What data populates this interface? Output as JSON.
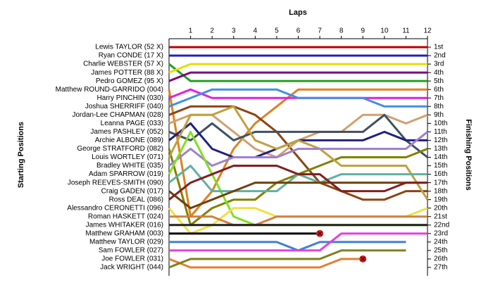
{
  "chart_data": {
    "type": "line",
    "title": "Laps",
    "ylabel": "Starting Positions",
    "y2label": "Finishing Positions",
    "x": [
      0,
      1,
      2,
      3,
      4,
      5,
      6,
      7,
      8,
      9,
      10,
      11,
      12
    ],
    "xlim": [
      0,
      12
    ],
    "xticks": [
      1,
      2,
      3,
      4,
      5,
      6,
      7,
      8,
      9,
      10,
      11,
      12
    ],
    "ylim": [
      27,
      1
    ],
    "y2lim": [
      27,
      1
    ],
    "y2ticks": [
      {
        "value": 1,
        "label": "1st"
      },
      {
        "value": 2,
        "label": "2nd"
      },
      {
        "value": 3,
        "label": "3rd"
      },
      {
        "value": 4,
        "label": "4th"
      },
      {
        "value": 5,
        "label": "5th"
      },
      {
        "value": 6,
        "label": "6th"
      },
      {
        "value": 7,
        "label": "7th"
      },
      {
        "value": 8,
        "label": "8th"
      },
      {
        "value": 9,
        "label": "9th"
      },
      {
        "value": 10,
        "label": "10th"
      },
      {
        "value": 11,
        "label": "11th"
      },
      {
        "value": 12,
        "label": "12th"
      },
      {
        "value": 13,
        "label": "13th"
      },
      {
        "value": 14,
        "label": "14th"
      },
      {
        "value": 15,
        "label": "15th"
      },
      {
        "value": 16,
        "label": "16th"
      },
      {
        "value": 17,
        "label": "17th"
      },
      {
        "value": 18,
        "label": "18th"
      },
      {
        "value": 19,
        "label": "19th"
      },
      {
        "value": 20,
        "label": "20th"
      },
      {
        "value": 21,
        "label": "21st"
      },
      {
        "value": 22,
        "label": "22nd"
      },
      {
        "value": 23,
        "label": "23rd"
      },
      {
        "value": 24,
        "label": "24th"
      },
      {
        "value": 25,
        "label": "25th"
      },
      {
        "value": 26,
        "label": "26th"
      },
      {
        "value": 27,
        "label": "27th"
      }
    ],
    "series": [
      {
        "name": "Lewis TAYLOR (52 X)",
        "color": "#c00000",
        "values": [
          1,
          1,
          1,
          1,
          1,
          1,
          1,
          1,
          1,
          1,
          1,
          1,
          1
        ]
      },
      {
        "name": "Ryan CONDE (17 X)",
        "color": "#2020c0",
        "values": [
          2,
          2,
          2,
          2,
          2,
          2,
          2,
          2,
          2,
          2,
          2,
          2,
          2
        ]
      },
      {
        "name": "Charlie WEBSTER (57 X)",
        "color": "#20a020",
        "values": [
          3,
          5,
          5,
          5,
          5,
          5,
          5,
          5,
          5,
          5,
          5,
          5,
          5
        ]
      },
      {
        "name": "James POTTER (88 X)",
        "color": "#e0e000",
        "values": [
          4,
          3,
          3,
          3,
          3,
          3,
          3,
          3,
          3,
          3,
          3,
          3,
          3
        ]
      },
      {
        "name": "Pedro GOMEZ (95 X)",
        "color": "#800080",
        "values": [
          5,
          4,
          4,
          4,
          4,
          4,
          4,
          4,
          4,
          4,
          4,
          4,
          4
        ]
      },
      {
        "name": "Matthew ROUND-GARRIDO (004)",
        "color": "#e08020",
        "values": [
          6,
          21,
          18,
          13,
          10,
          8,
          6,
          6,
          6,
          6,
          6,
          6,
          6
        ]
      },
      {
        "name": "Harry PINCHIN (030)",
        "color": "#e020e0",
        "values": [
          7,
          6,
          7,
          7,
          7,
          7,
          7,
          7,
          7,
          7,
          7,
          7,
          7
        ]
      },
      {
        "name": "Joshua SHERRIFF (040)",
        "color": "#4090e0",
        "values": [
          8,
          7,
          6,
          6,
          6,
          6,
          7,
          7,
          7,
          7,
          8,
          8,
          8
        ]
      },
      {
        "name": "Jordan-Lee CHAPMAN (028)",
        "color": "#8b4513",
        "values": [
          9,
          8,
          8,
          8,
          9,
          11,
          14,
          17,
          18,
          19,
          19,
          18,
          18
        ]
      },
      {
        "name": "Leanna PAGE (033)",
        "color": "#d0a070",
        "values": [
          10,
          9,
          9,
          11,
          13,
          14,
          12,
          11,
          11,
          9,
          9,
          10,
          9
        ]
      },
      {
        "name": "James PASHLEY (052)",
        "color": "#405060",
        "values": [
          11,
          12,
          10,
          12,
          11,
          11,
          11,
          11,
          11,
          11,
          9,
          12,
          14
        ]
      },
      {
        "name": "Archie ALBONE (089)",
        "color": "#202080",
        "values": [
          12,
          10,
          13,
          14,
          14,
          13,
          12,
          12,
          12,
          12,
          11,
          12,
          12
        ]
      },
      {
        "name": "George STRATFORD (082)",
        "color": "#808000",
        "values": [
          13,
          22,
          20,
          19,
          19,
          17,
          16,
          15,
          14,
          14,
          14,
          14,
          13
        ]
      },
      {
        "name": "Louis WORTLEY (071)",
        "color": "#c0a040",
        "values": [
          14,
          9,
          9,
          8,
          12,
          13,
          12,
          13,
          15,
          15,
          15,
          15,
          19
        ]
      },
      {
        "name": "Bradley WHITE (035)",
        "color": "#a080d0",
        "values": [
          15,
          13,
          15,
          14,
          14,
          14,
          13,
          13,
          13,
          13,
          13,
          13,
          11
        ]
      },
      {
        "name": "Adam SPARROW (019)",
        "color": "#80e020",
        "values": [
          16,
          11,
          16,
          21,
          22,
          22,
          22,
          22,
          22,
          22,
          22,
          22,
          22
        ]
      },
      {
        "name": "Joseph REEVES-SMITH (090)",
        "color": "#60b0a0",
        "values": [
          17,
          15,
          18,
          18,
          18,
          18,
          16,
          17,
          16,
          16,
          16,
          16,
          16
        ]
      },
      {
        "name": "Craig GADEN (017)",
        "color": "#704010",
        "values": [
          18,
          20,
          19,
          18,
          17,
          17,
          17,
          17,
          17,
          17,
          17,
          17,
          17
        ]
      },
      {
        "name": "Ross DEAL (086)",
        "color": "#802020",
        "values": [
          19,
          17,
          16,
          15,
          15,
          15,
          16,
          16,
          18,
          18,
          18,
          17,
          17
        ]
      },
      {
        "name": "Alessandro CERONETTI (096)",
        "color": "#f0e040",
        "values": [
          20,
          23,
          22,
          20,
          20,
          21,
          21,
          21,
          21,
          21,
          21,
          21,
          20
        ]
      },
      {
        "name": "Roman HASKETT (024)",
        "color": "#d08040",
        "values": [
          21,
          21,
          21,
          22,
          22,
          21,
          21,
          21,
          21,
          21,
          21,
          21,
          21
        ]
      },
      {
        "name": "James WHITAKER (016)",
        "color": "#202020",
        "values": [
          22,
          22,
          22,
          22,
          22,
          22,
          22,
          22,
          22,
          22,
          22,
          22,
          22
        ]
      },
      {
        "name": "Matthew GRAHAM (003)",
        "color": "#000000",
        "retired": true,
        "values": [
          23,
          23,
          23,
          23,
          23,
          23,
          23,
          23,
          null,
          null,
          null,
          null,
          null
        ]
      },
      {
        "name": "Matthew TAYLOR (029)",
        "color": "#4080d0",
        "values": [
          24,
          24,
          24,
          24,
          24,
          24,
          25,
          24,
          24,
          24,
          24,
          24,
          null
        ]
      },
      {
        "name": "Sam FOWLER (027)",
        "color": "#e040e0",
        "values": [
          25,
          25,
          25,
          25,
          25,
          25,
          25,
          25,
          23,
          23,
          23,
          23,
          23
        ]
      },
      {
        "name": "Joe FOWLER (031)",
        "color": "#e08030",
        "retired": true,
        "values": [
          26,
          27,
          27,
          27,
          27,
          27,
          27,
          27,
          26,
          26,
          null,
          null,
          null
        ]
      },
      {
        "name": "Jack WRIGHT (044)",
        "color": "#808020",
        "values": [
          27,
          26,
          26,
          26,
          26,
          26,
          26,
          26,
          25,
          25,
          25,
          25,
          null
        ]
      }
    ]
  }
}
